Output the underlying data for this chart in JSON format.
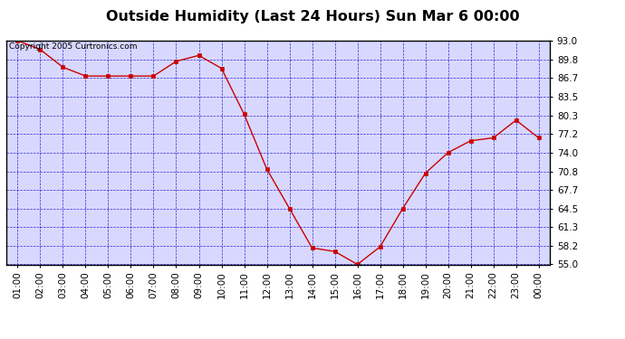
{
  "title": "Outside Humidity (Last 24 Hours) Sun Mar 6 00:00",
  "copyright": "Copyright 2005 Curtronics.com",
  "x_labels": [
    "01:00",
    "02:00",
    "03:00",
    "04:00",
    "05:00",
    "06:00",
    "07:00",
    "08:00",
    "09:00",
    "10:00",
    "11:00",
    "12:00",
    "13:00",
    "14:00",
    "15:00",
    "16:00",
    "17:00",
    "18:00",
    "19:00",
    "20:00",
    "21:00",
    "22:00",
    "23:00",
    "00:00"
  ],
  "y_ticks": [
    55.0,
    58.2,
    61.3,
    64.5,
    67.7,
    70.8,
    74.0,
    77.2,
    80.3,
    83.5,
    86.7,
    89.8,
    93.0
  ],
  "ylim": [
    55.0,
    93.0
  ],
  "data_x": [
    1,
    2,
    3,
    4,
    5,
    6,
    7,
    8,
    9,
    10,
    11,
    12,
    13,
    14,
    15,
    16,
    17,
    18,
    19,
    20,
    21,
    22,
    23,
    24
  ],
  "data_y": [
    93.0,
    91.5,
    88.5,
    87.0,
    87.0,
    87.0,
    87.0,
    89.5,
    90.5,
    88.3,
    80.5,
    71.2,
    64.5,
    57.8,
    57.2,
    55.0,
    58.0,
    64.5,
    70.5,
    74.0,
    76.0,
    76.5,
    79.5,
    76.5
  ],
  "line_color": "#cc0000",
  "marker_color": "#cc0000",
  "fig_bg_color": "#ffffff",
  "plot_bg_color": "#d8d8ff",
  "grid_color": "#0000cc",
  "border_color": "#000000",
  "title_color": "#000000",
  "tick_label_color": "#000000",
  "copyright_color": "#000000",
  "title_fontsize": 11.5,
  "tick_fontsize": 7.5,
  "copyright_fontsize": 6.5
}
